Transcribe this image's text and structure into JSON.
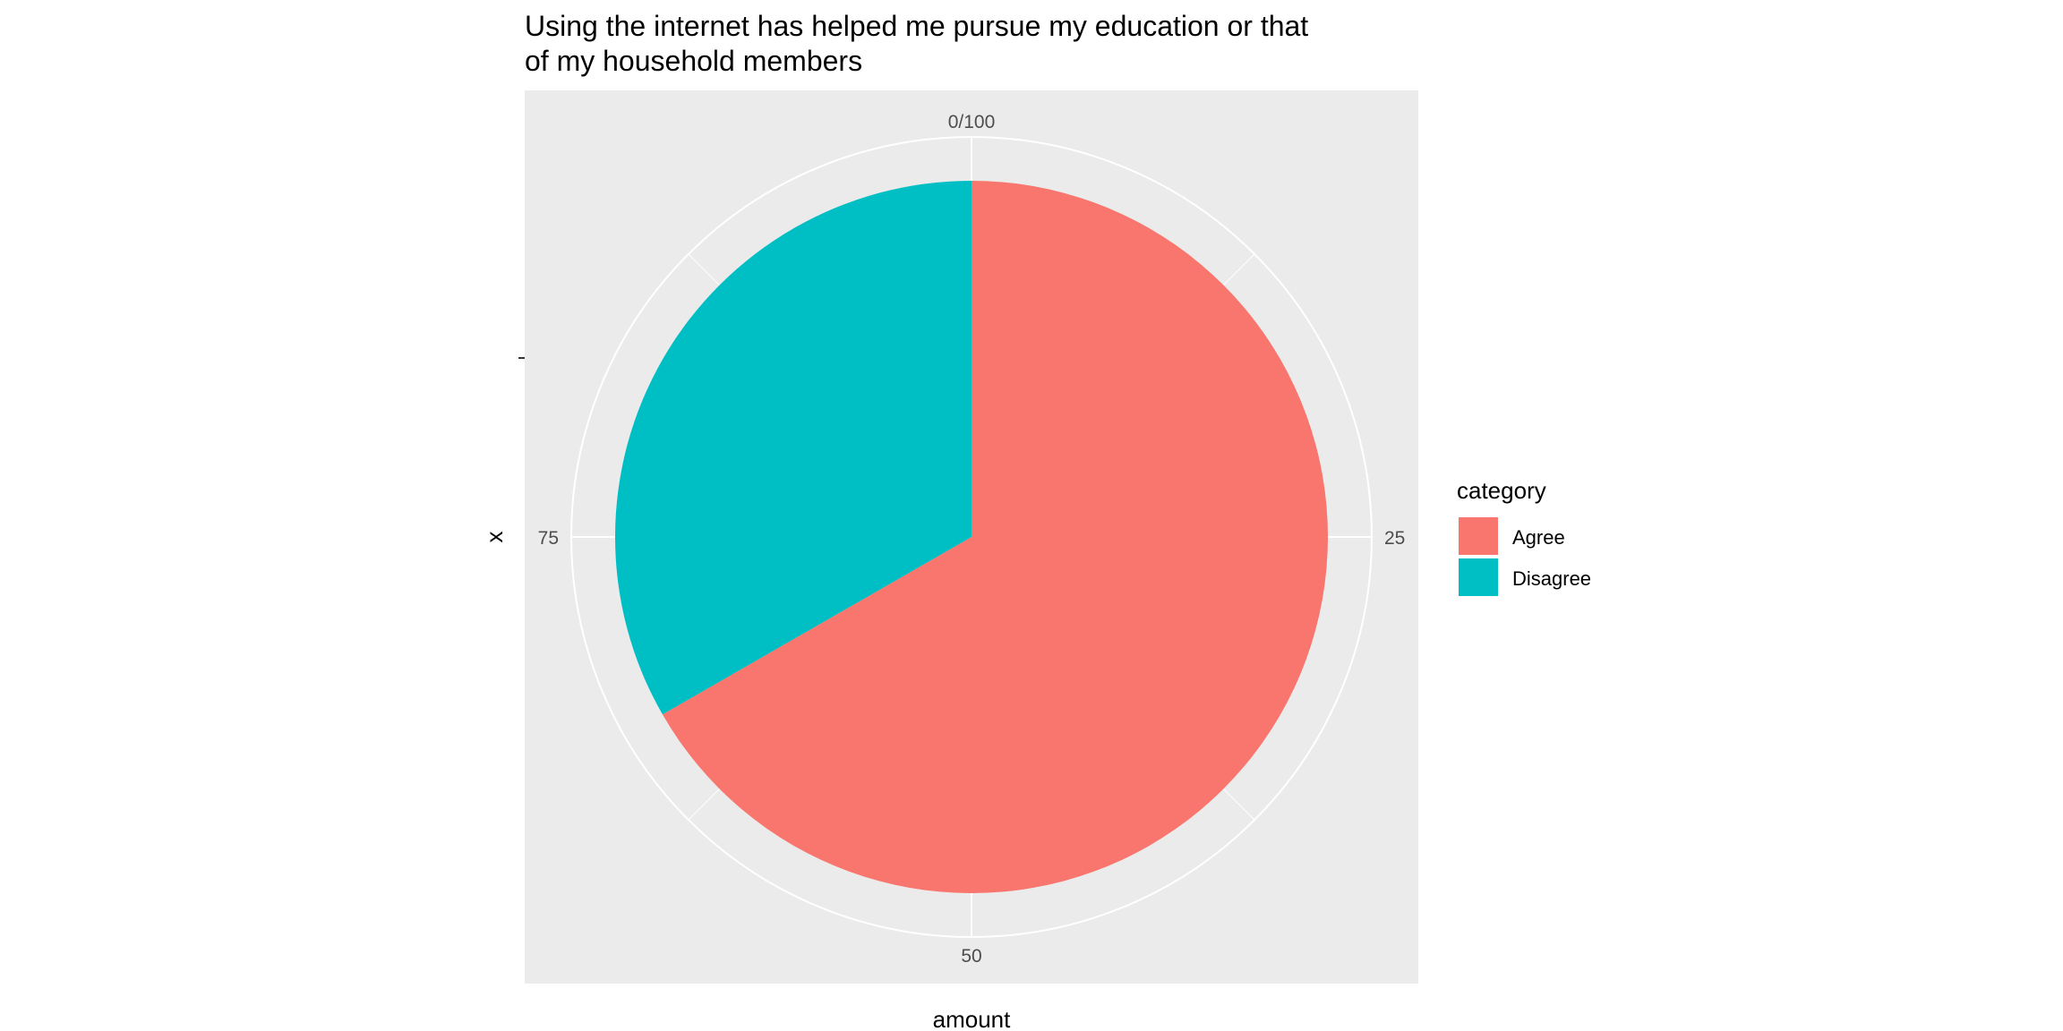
{
  "chart_data": {
    "type": "pie",
    "title": "Using the internet has helped me pursue my education or that of my household members",
    "title_lines": [
      "Using the internet has helped me pursue my education or that",
      "of my household members"
    ],
    "xlabel": "amount",
    "ylabel": "x",
    "theta_axis": {
      "range": [
        0,
        100
      ],
      "ticks": [
        "0/100",
        "25",
        "50",
        "75"
      ],
      "tick_values": [
        0,
        25,
        50,
        75
      ]
    },
    "grid": true,
    "legend": {
      "title": "category",
      "placement": "right",
      "entries": [
        "Agree",
        "Disagree"
      ]
    },
    "categories": [
      "Agree",
      "Disagree"
    ],
    "values": [
      66.7,
      33.3
    ],
    "colors": {
      "Agree": "#F8766D",
      "Disagree": "#00BFC4",
      "panel": "#EBEBEB",
      "grid": "#FFFFFF",
      "text": "#000000",
      "tick_text": "#4D4D4D"
    }
  }
}
